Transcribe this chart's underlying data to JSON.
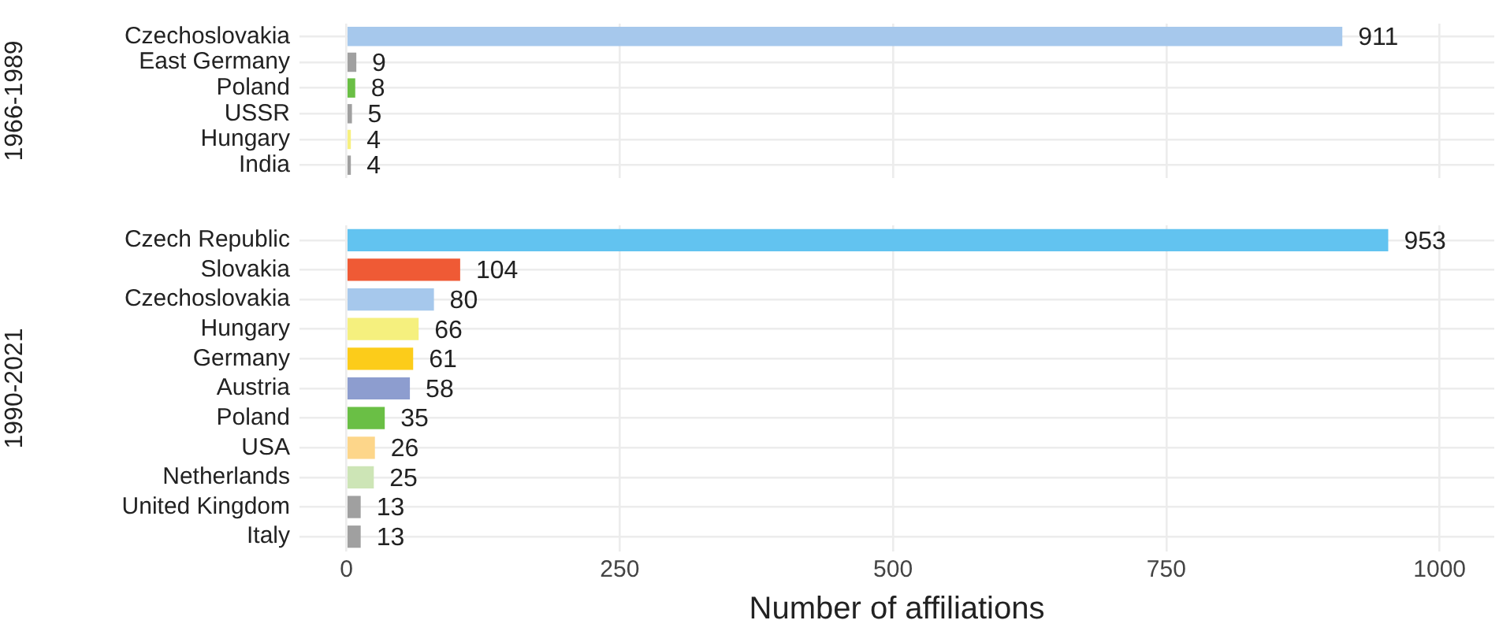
{
  "chart_data": [
    {
      "type": "bar",
      "orientation": "horizontal",
      "ylabel": "1966-1989",
      "categories": [
        "Czechoslovakia",
        "East Germany",
        "Poland",
        "USSR",
        "Hungary",
        "India"
      ],
      "values": [
        911,
        9,
        8,
        5,
        4,
        4
      ],
      "colors": [
        "#a6c8ec",
        "#a0a0a0",
        "#6abf45",
        "#a0a0a0",
        "#f7f07e",
        "#a0a0a0"
      ],
      "xlim": [
        -43,
        1050
      ],
      "xticks": [
        0,
        250,
        500,
        750,
        1000
      ],
      "tick_labels": "y",
      "grid": true,
      "data_labels": true
    },
    {
      "type": "bar",
      "orientation": "horizontal",
      "ylabel": "1990-2021",
      "xlabel": "Number of affiliations",
      "categories": [
        "Czech Republic",
        "Slovakia",
        "Czechoslovakia",
        "Hungary",
        "Germany",
        "Austria",
        "Poland",
        "USA",
        "Netherlands",
        "United Kingdom",
        "Italy"
      ],
      "values": [
        953,
        104,
        80,
        66,
        61,
        58,
        35,
        26,
        25,
        13,
        13
      ],
      "colors": [
        "#62c3f0",
        "#ef5a35",
        "#a6c8ec",
        "#f5f07e",
        "#fccc1a",
        "#8d9dcf",
        "#6abf45",
        "#fdd68a",
        "#cde5b6",
        "#a0a0a0",
        "#a0a0a0"
      ],
      "xlim": [
        -43,
        1050
      ],
      "xticks": [
        0,
        250,
        500,
        750,
        1000
      ],
      "grid": true,
      "data_labels": true
    }
  ]
}
